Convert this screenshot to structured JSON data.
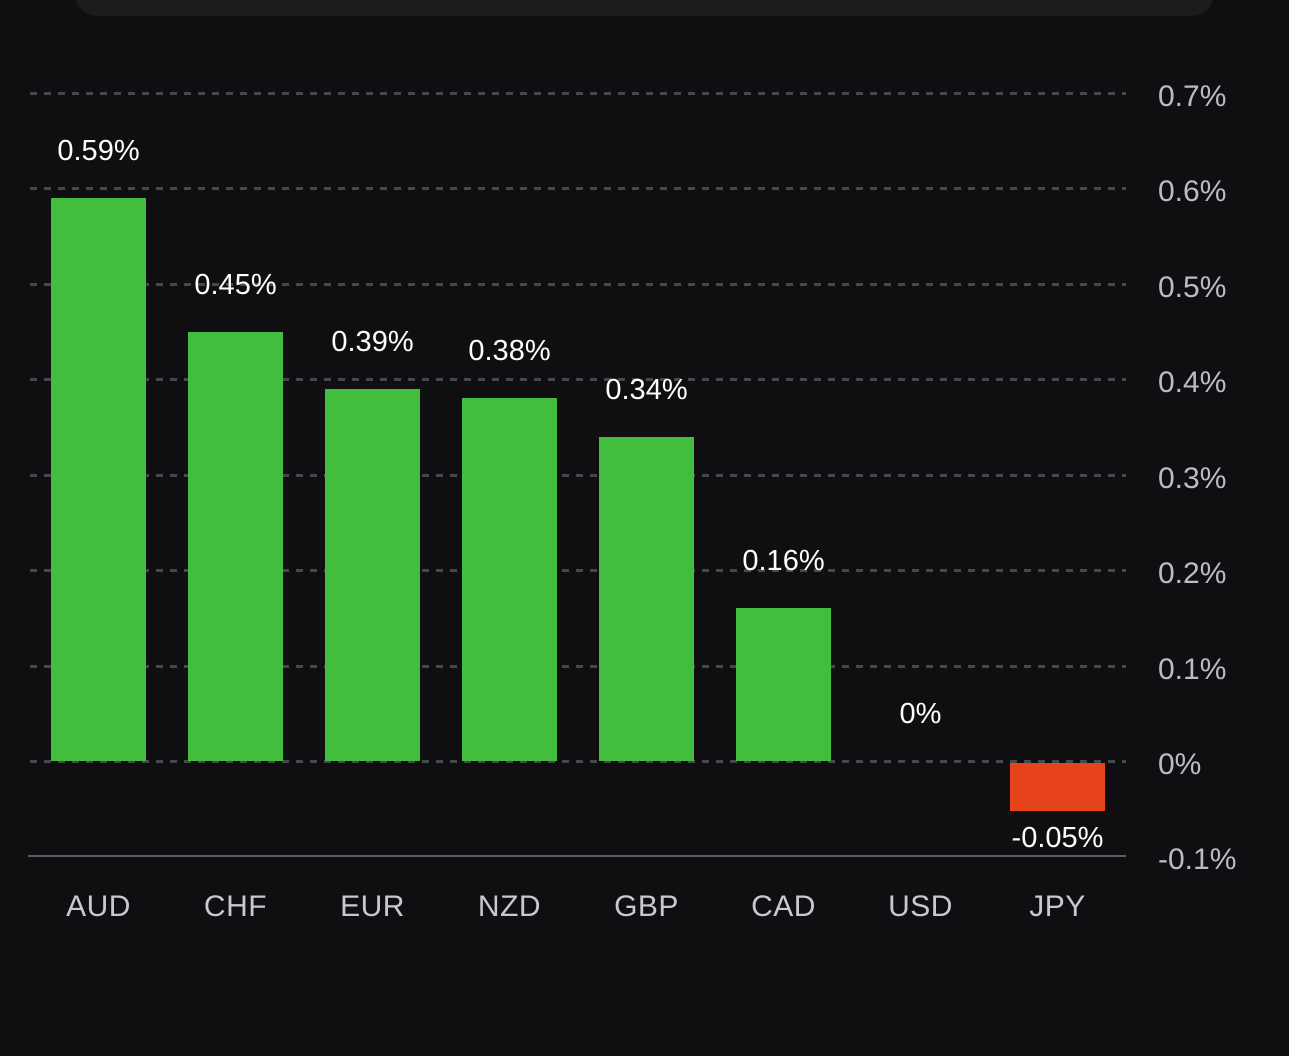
{
  "chart_data": {
    "type": "bar",
    "title": "",
    "categories": [
      "AUD",
      "CHF",
      "EUR",
      "NZD",
      "GBP",
      "CAD",
      "USD",
      "JPY"
    ],
    "values": [
      0.59,
      0.45,
      0.39,
      0.38,
      0.34,
      0.16,
      0,
      -0.05
    ],
    "value_labels": [
      "0.59%",
      "0.45%",
      "0.39%",
      "0.38%",
      "0.34%",
      "0.16%",
      "0%",
      "-0.05%"
    ],
    "unit": "%",
    "ylim": [
      -0.1,
      0.7
    ],
    "y_ticks": [
      {
        "value": 0.7,
        "label": "0.7%"
      },
      {
        "value": 0.6,
        "label": "0.6%"
      },
      {
        "value": 0.5,
        "label": "0.5%"
      },
      {
        "value": 0.4,
        "label": "0.4%"
      },
      {
        "value": 0.3,
        "label": "0.3%"
      },
      {
        "value": 0.2,
        "label": "0.2%"
      },
      {
        "value": 0.1,
        "label": "0.1%"
      },
      {
        "value": 0,
        "label": "0%"
      },
      {
        "value": -0.1,
        "label": "-0.1%"
      }
    ],
    "grid": "dashed-horizontal",
    "legend": "none",
    "axis_position": "right",
    "colors": {
      "positive": "#42bd3e",
      "negative": "#e6431c",
      "grid": "#47484b",
      "axis_line": "#5c5e63",
      "tick_text": "#b9bdc3",
      "category_text": "#c6c9cf",
      "value_text": "#fdfdfe",
      "background": "#0f0f12",
      "panel": "#1c1c1f"
    }
  }
}
